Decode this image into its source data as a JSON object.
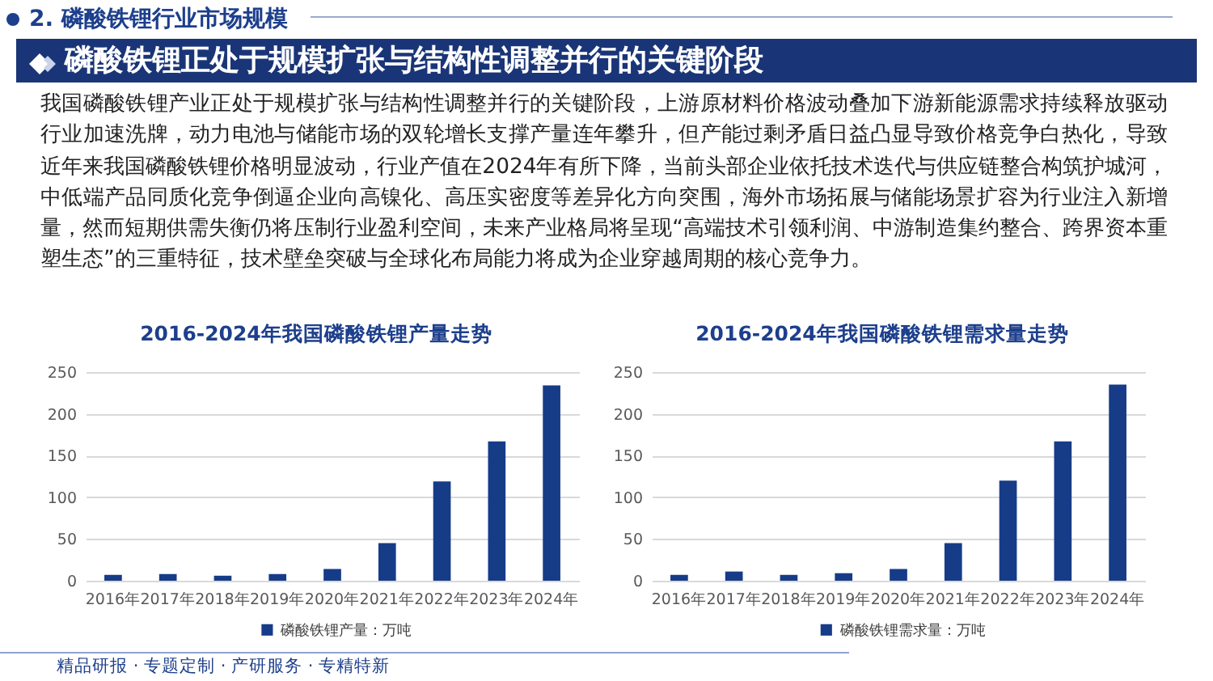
{
  "chart_data": [
    {
      "type": "other",
      "title": "磷酸铁锂正处于规模扩张与结构性调整并行的关键阶段",
      "annotations": [
        "2. 磷酸铁锂行业市场规模",
        "我国磷酸铁锂产业正处于规模扩张与结构性调整并行的关键阶段，上游原材料价格波动叠加下游新能源需求持续释放驱动行业加速洗牌，动力电池与储能市场的双轮增长支撑产量连年攀升，但产能过剩矛盾日益凸显导致价格竞争白热化，导致近年来我国磷酸铁锂价格明显波动，行业产值在2024年有所下降，当前头部企业依托技术迭代与供应链整合构筑护城河，中低端产品同质化竞争倒逼企业向高镍化、高压实密度等差异化方向突围，海外市场拓展与储能场景扩容为行业注入新增量，然而短期供需失衡仍将压制行业盈利空间，未来产业格局将呈现“高端技术引领利润、中游制造集约整合、跨界资本重塑生态”的三重特征，技术壁垒突破与全球化布局能力将成为企业穿越周期的核心竞争力。"
      ]
    },
    {
      "type": "bar",
      "title": "2016-2024年我国磷酸铁锂产量走势",
      "categories": [
        "2016年",
        "2017年",
        "2018年",
        "2019年",
        "2020年",
        "2021年",
        "2022年",
        "2023年",
        "2024年"
      ],
      "series": [
        {
          "name": "磷酸铁锂产量：万吨",
          "color": "#163c88",
          "values": [
            7,
            8,
            6,
            8,
            14,
            45,
            119,
            167,
            234
          ]
        }
      ],
      "ylim": [
        0,
        250
      ],
      "yticks": [
        0,
        50,
        100,
        150,
        200,
        250
      ],
      "grid": "y",
      "legend": "bottom",
      "annotations": [
        "精品研报 · 专题定制 · 产研服务 · 专精特新"
      ]
    },
    {
      "type": "bar",
      "title": "2016-2024年我国磷酸铁锂需求量走势",
      "categories": [
        "2016年",
        "2017年",
        "2018年",
        "2019年",
        "2020年",
        "2021年",
        "2022年",
        "2023年",
        "2024年"
      ],
      "series": [
        {
          "name": "磷酸铁锂需求量：万吨",
          "color": "#163c88",
          "values": [
            7,
            11,
            7,
            9,
            14,
            45,
            120,
            167,
            235
          ]
        }
      ],
      "ylim": [
        0,
        250
      ],
      "yticks": [
        0,
        50,
        100,
        150,
        200,
        250
      ],
      "grid": "y",
      "legend": "bottom"
    }
  ]
}
